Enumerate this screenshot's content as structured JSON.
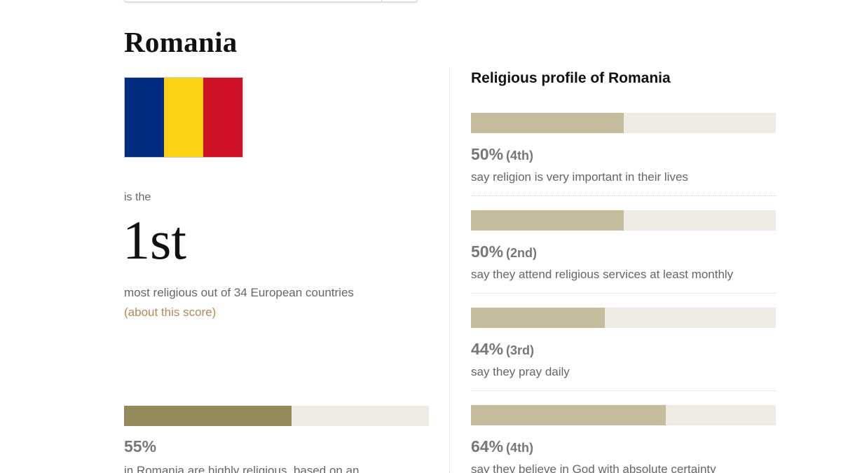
{
  "country": {
    "name": "Romania",
    "flag_colors": [
      "#002b7f",
      "#fcd116",
      "#ce1126"
    ]
  },
  "ranking": {
    "prefix": "is the",
    "rank": "1st",
    "description": "most religious out of 34 European countries",
    "about_link": "(about this score)"
  },
  "summary": {
    "percent_value": 55,
    "percent_label": "55%",
    "description": "in Romania are highly religious, based on an"
  },
  "profile": {
    "title": "Religious profile of Romania",
    "metrics": [
      {
        "value": 50,
        "percent_label": "50%",
        "rank_label": "(4th)",
        "description": "say religion is very important in their lives"
      },
      {
        "value": 50,
        "percent_label": "50%",
        "rank_label": "(2nd)",
        "description": "say they attend religious services at least monthly"
      },
      {
        "value": 44,
        "percent_label": "44%",
        "rank_label": "(3rd)",
        "description": "say they pray daily"
      },
      {
        "value": 64,
        "percent_label": "64%",
        "rank_label": "(4th)",
        "description": "say they believe in God with absolute certainty"
      }
    ]
  }
}
